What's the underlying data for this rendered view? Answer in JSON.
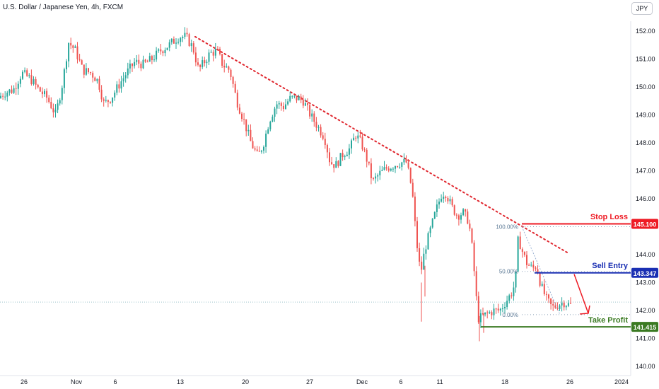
{
  "title": "U.S. Dollar / Japanese Yen, 4h, FXCM",
  "currency_button": "JPY",
  "colors": {
    "up": "#26a69a",
    "down": "#ef5350",
    "stop": "#ee1b24",
    "entry": "#1a2fb3",
    "target": "#3a7a22",
    "trend": "#e0262e",
    "fib": "#8aa0b8",
    "current": "#9cc3c9"
  },
  "chart_data": {
    "type": "candlestick",
    "symbol": "USDJPY",
    "interval": "4h",
    "source": "FXCM",
    "ylim": [
      139.8,
      152.5
    ],
    "y_ticks": [
      140.0,
      141.0,
      142.0,
      143.0,
      144.0,
      145.0,
      146.0,
      147.0,
      148.0,
      149.0,
      150.0,
      151.0,
      152.0
    ],
    "x_ticks": [
      "26",
      "Nov",
      "6",
      "13",
      "20",
      "27",
      "Dec",
      "6",
      "11",
      "18",
      "26",
      "2024"
    ],
    "price_path": [
      [
        0,
        149.6
      ],
      [
        10,
        149.8
      ],
      [
        22,
        149.9
      ],
      [
        34,
        150.5
      ],
      [
        46,
        150.3
      ],
      [
        58,
        149.9
      ],
      [
        70,
        149.6
      ],
      [
        82,
        149.0
      ],
      [
        92,
        150.2
      ],
      [
        100,
        151.6
      ],
      [
        110,
        151.3
      ],
      [
        120,
        150.6
      ],
      [
        132,
        150.5
      ],
      [
        142,
        150.2
      ],
      [
        150,
        149.4
      ],
      [
        160,
        149.6
      ],
      [
        172,
        150.1
      ],
      [
        182,
        150.5
      ],
      [
        194,
        150.9
      ],
      [
        206,
        150.8
      ],
      [
        218,
        151.0
      ],
      [
        230,
        151.3
      ],
      [
        242,
        151.5
      ],
      [
        256,
        151.8
      ],
      [
        266,
        151.8
      ],
      [
        276,
        151.4
      ],
      [
        284,
        150.6
      ],
      [
        292,
        150.9
      ],
      [
        300,
        151.2
      ],
      [
        310,
        151.3
      ],
      [
        318,
        150.8
      ],
      [
        328,
        150.6
      ],
      [
        338,
        149.5
      ],
      [
        348,
        148.8
      ],
      [
        358,
        148.0
      ],
      [
        368,
        147.5
      ],
      [
        376,
        148.0
      ],
      [
        384,
        148.8
      ],
      [
        394,
        149.4
      ],
      [
        404,
        149.3
      ],
      [
        414,
        149.6
      ],
      [
        424,
        149.6
      ],
      [
        432,
        149.5
      ],
      [
        442,
        149.0
      ],
      [
        452,
        148.6
      ],
      [
        462,
        148.2
      ],
      [
        470,
        147.3
      ],
      [
        478,
        147.2
      ],
      [
        488,
        147.6
      ],
      [
        498,
        147.8
      ],
      [
        506,
        148.3
      ],
      [
        514,
        148.0
      ],
      [
        522,
        147.4
      ],
      [
        530,
        146.6
      ],
      [
        540,
        146.9
      ],
      [
        550,
        147.1
      ],
      [
        560,
        147.2
      ],
      [
        570,
        147.3
      ],
      [
        578,
        147.3
      ],
      [
        586,
        146.3
      ],
      [
        592,
        144.5
      ],
      [
        598,
        143.3
      ],
      [
        604,
        144.2
      ],
      [
        612,
        144.9
      ],
      [
        620,
        145.6
      ],
      [
        628,
        146.2
      ],
      [
        634,
        146.2
      ],
      [
        642,
        145.7
      ],
      [
        650,
        145.4
      ],
      [
        658,
        145.5
      ],
      [
        666,
        145.2
      ],
      [
        672,
        144.0
      ],
      [
        676,
        142.6
      ],
      [
        680,
        141.7
      ],
      [
        686,
        141.8
      ],
      [
        694,
        141.9
      ],
      [
        702,
        142.0
      ],
      [
        710,
        142.0
      ],
      [
        718,
        142.3
      ],
      [
        726,
        142.6
      ],
      [
        732,
        143.0
      ],
      [
        736,
        144.6
      ],
      [
        742,
        144.1
      ],
      [
        748,
        143.7
      ],
      [
        756,
        143.5
      ],
      [
        762,
        143.6
      ],
      [
        768,
        142.9
      ],
      [
        776,
        142.4
      ],
      [
        784,
        142.1
      ],
      [
        792,
        142.2
      ],
      [
        800,
        142.3
      ],
      [
        808,
        142.2
      ]
    ],
    "trend_line": [
      [
        276,
        151.8
      ],
      [
        804,
        144.05
      ]
    ],
    "levels": [
      {
        "name": "Stop Loss",
        "price": 145.1,
        "price_label": "145.100",
        "color_key": "stop"
      },
      {
        "name": "Sell Entry",
        "price": 143.347,
        "price_label": "143.347",
        "color_key": "entry"
      },
      {
        "name": "Take Profit",
        "price": 141.415,
        "price_label": "141.415",
        "color_key": "target"
      }
    ],
    "fibonacci": [
      {
        "label": "100.00%",
        "price": 145.0
      },
      {
        "label": "50.00%",
        "price": 143.4
      },
      {
        "label": "0.00%",
        "price": 141.85
      }
    ],
    "current_price": 142.3,
    "projection_arrow": {
      "from": [
        812,
        143.3
      ],
      "to": [
        832,
        141.9
      ]
    }
  }
}
